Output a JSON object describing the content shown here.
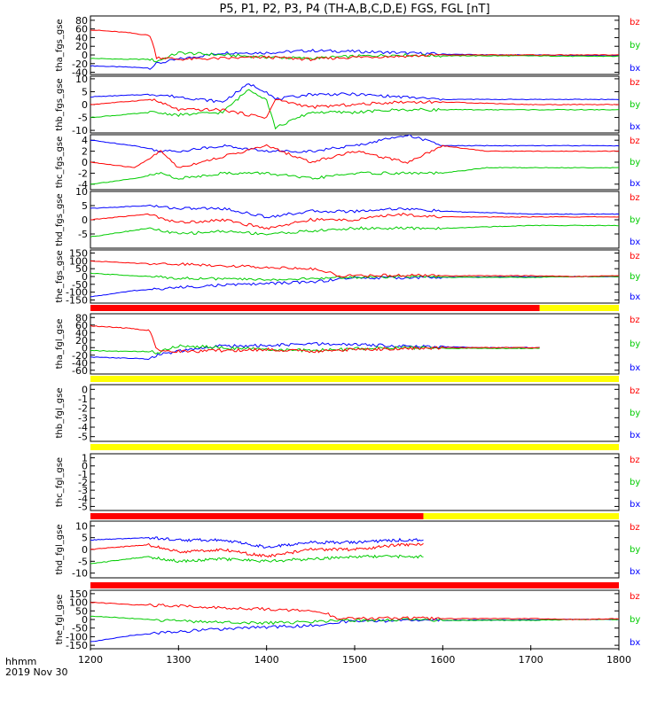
{
  "title": "P5, P1, P2, P3, P4 (TH-A,B,C,D,E) FGS, FGL [nT]",
  "x_axis": {
    "unit_label": "hhmm",
    "date_label": "2019 Nov 30",
    "range": [
      1200,
      1800
    ],
    "tick_labels": [
      "1200",
      "1300",
      "1400",
      "1500",
      "1600",
      "1700",
      "1800"
    ]
  },
  "colors": {
    "bz": "#ff0000",
    "by": "#00cc00",
    "bx": "#0000ff",
    "bar_red": "#ff0000",
    "bar_yellow": "#ffff00"
  },
  "legend_labels": [
    "bz",
    "by",
    "bx"
  ],
  "chart_data": [
    {
      "type": "line",
      "ylabel": "tha_fgs_gse",
      "ylim": [
        -45,
        90
      ],
      "y_tick_labels": [
        "-40",
        "-20",
        "0",
        "20",
        "40",
        "60",
        "80"
      ],
      "series": [
        {
          "name": "bz",
          "x": [
            1200,
            1240,
            1268,
            1275,
            1300,
            1350,
            1400,
            1450,
            1500,
            1550,
            1600,
            1650,
            1700,
            1750,
            1800
          ],
          "values": [
            58,
            52,
            45,
            -5,
            -10,
            -8,
            -5,
            -10,
            -5,
            -3,
            0,
            0,
            0,
            0,
            0
          ]
        },
        {
          "name": "by",
          "x": [
            1200,
            1240,
            1268,
            1275,
            1300,
            1350,
            1400,
            1450,
            1500,
            1550,
            1600,
            1650,
            1700,
            1750,
            1800
          ],
          "values": [
            -8,
            -10,
            -10,
            -15,
            5,
            0,
            -5,
            -8,
            -3,
            0,
            -2,
            -2,
            -2,
            -3,
            -3
          ]
        },
        {
          "name": "bx",
          "x": [
            1200,
            1240,
            1268,
            1275,
            1300,
            1350,
            1400,
            1450,
            1500,
            1550,
            1600,
            1650,
            1700,
            1750,
            1800
          ],
          "values": [
            -25,
            -28,
            -30,
            -20,
            -10,
            5,
            5,
            10,
            8,
            5,
            2,
            0,
            0,
            -1,
            -2
          ]
        }
      ]
    },
    {
      "type": "line",
      "ylabel": "thb_fgs_gse",
      "ylim": [
        -11,
        11
      ],
      "y_tick_labels": [
        "-10",
        "-5",
        "0",
        "5",
        "10"
      ],
      "series": [
        {
          "name": "bz",
          "x": [
            1200,
            1270,
            1300,
            1350,
            1380,
            1400,
            1410,
            1450,
            1500,
            1550,
            1600,
            1700,
            1800
          ],
          "values": [
            0,
            2,
            -2,
            -2,
            -4,
            -5,
            2,
            -1,
            0,
            1,
            1,
            0,
            0
          ]
        },
        {
          "name": "by",
          "x": [
            1200,
            1270,
            1300,
            1350,
            1380,
            1400,
            1410,
            1450,
            1500,
            1550,
            1600,
            1700,
            1800
          ],
          "values": [
            -5,
            -3,
            -4,
            -3,
            6,
            2,
            -9,
            -3,
            -3,
            -2,
            -2,
            -2,
            -2
          ]
        },
        {
          "name": "bx",
          "x": [
            1200,
            1270,
            1300,
            1350,
            1380,
            1400,
            1410,
            1450,
            1500,
            1550,
            1600,
            1700,
            1800
          ],
          "values": [
            3,
            4,
            3,
            1,
            8,
            5,
            2,
            4,
            4,
            3,
            2,
            2,
            2
          ]
        }
      ]
    },
    {
      "type": "line",
      "ylabel": "thc_fgs_gse",
      "ylim": [
        -5,
        5
      ],
      "y_tick_labels": [
        "-4",
        "-2",
        "0",
        "2",
        "4"
      ],
      "series": [
        {
          "name": "bz",
          "x": [
            1200,
            1250,
            1280,
            1300,
            1350,
            1400,
            1450,
            1500,
            1560,
            1600,
            1650,
            1700,
            1800
          ],
          "values": [
            0,
            -1,
            2,
            -1,
            1,
            3,
            0,
            2,
            0,
            3,
            2,
            2,
            2
          ]
        },
        {
          "name": "by",
          "x": [
            1200,
            1250,
            1280,
            1300,
            1350,
            1400,
            1450,
            1500,
            1560,
            1600,
            1650,
            1700,
            1800
          ],
          "values": [
            -4,
            -3,
            -2,
            -3,
            -2,
            -2,
            -3,
            -2,
            -2,
            -2,
            -1,
            -1,
            -1
          ]
        },
        {
          "name": "bx",
          "x": [
            1200,
            1250,
            1280,
            1300,
            1350,
            1400,
            1450,
            1500,
            1560,
            1600,
            1650,
            1700,
            1800
          ],
          "values": [
            4,
            3,
            2,
            2,
            3,
            2,
            2,
            3,
            5,
            3,
            3,
            3,
            3
          ]
        }
      ]
    },
    {
      "type": "line",
      "ylabel": "thd_fgs_gse",
      "ylim": [
        -10,
        10
      ],
      "y_tick_labels": [
        "-5",
        "0",
        "5",
        "10"
      ],
      "series": [
        {
          "name": "bz",
          "x": [
            1200,
            1265,
            1300,
            1350,
            1400,
            1450,
            1500,
            1550,
            1600,
            1700,
            1800
          ],
          "values": [
            0,
            2,
            -1,
            0,
            -3,
            0,
            0,
            2,
            1,
            1,
            1
          ]
        },
        {
          "name": "by",
          "x": [
            1200,
            1265,
            1300,
            1350,
            1400,
            1450,
            1500,
            1550,
            1600,
            1700,
            1800
          ],
          "values": [
            -6,
            -3,
            -5,
            -4,
            -5,
            -4,
            -3,
            -3,
            -3,
            -2,
            -2
          ]
        },
        {
          "name": "bx",
          "x": [
            1200,
            1265,
            1300,
            1350,
            1400,
            1450,
            1500,
            1550,
            1600,
            1700,
            1800
          ],
          "values": [
            4,
            5,
            4,
            4,
            1,
            3,
            3,
            4,
            3,
            2,
            2
          ]
        }
      ]
    },
    {
      "type": "line",
      "ylabel": "the_fgs_gse",
      "ylim": [
        -170,
        170
      ],
      "y_tick_labels": [
        "-150",
        "-100",
        "-50",
        "0",
        "50",
        "100",
        "150"
      ],
      "series": [
        {
          "name": "bz",
          "x": [
            1200,
            1250,
            1300,
            1350,
            1400,
            1450,
            1470,
            1480,
            1500,
            1550,
            1600,
            1650,
            1700,
            1750,
            1800
          ],
          "values": [
            100,
            85,
            80,
            70,
            60,
            50,
            30,
            5,
            5,
            8,
            5,
            5,
            5,
            0,
            5
          ]
        },
        {
          "name": "by",
          "x": [
            1200,
            1250,
            1300,
            1350,
            1400,
            1450,
            1470,
            1480,
            1500,
            1550,
            1600,
            1650,
            1700,
            1750,
            1800
          ],
          "values": [
            20,
            5,
            -10,
            -15,
            -20,
            -15,
            -10,
            -5,
            -5,
            0,
            -5,
            -5,
            -5,
            0,
            0
          ]
        },
        {
          "name": "bx",
          "x": [
            1200,
            1250,
            1300,
            1350,
            1400,
            1450,
            1470,
            1480,
            1500,
            1550,
            1600,
            1650,
            1700,
            1750,
            1800
          ],
          "values": [
            -130,
            -90,
            -70,
            -55,
            -45,
            -35,
            -25,
            -15,
            -10,
            -8,
            -5,
            -3,
            -2,
            0,
            0
          ]
        }
      ]
    },
    {
      "type": "line",
      "ylabel": "tha_fgl_gse",
      "ylim": [
        -70,
        90
      ],
      "y_tick_labels": [
        "-60",
        "-40",
        "-20",
        "0",
        "20",
        "40",
        "60",
        "80"
      ],
      "series": [
        {
          "name": "bz",
          "x": [
            1200,
            1240,
            1268,
            1275,
            1300,
            1350,
            1400,
            1450,
            1500,
            1550,
            1600,
            1650,
            1710
          ],
          "values": [
            58,
            52,
            45,
            -5,
            -10,
            -8,
            -5,
            -10,
            -5,
            -3,
            0,
            0,
            0
          ]
        },
        {
          "name": "by",
          "x": [
            1200,
            1240,
            1268,
            1275,
            1300,
            1350,
            1400,
            1450,
            1500,
            1550,
            1600,
            1650,
            1710
          ],
          "values": [
            -8,
            -10,
            -10,
            -15,
            5,
            0,
            -5,
            -8,
            -3,
            0,
            -2,
            -2,
            -2
          ]
        },
        {
          "name": "bx",
          "x": [
            1200,
            1240,
            1268,
            1275,
            1300,
            1350,
            1400,
            1450,
            1500,
            1550,
            1600,
            1650,
            1710
          ],
          "values": [
            -25,
            -28,
            -30,
            -20,
            -10,
            5,
            5,
            10,
            8,
            5,
            2,
            0,
            0
          ]
        }
      ]
    },
    {
      "type": "line",
      "ylabel": "thb_fgl_gse",
      "ylim": [
        -5.5,
        0.5
      ],
      "y_tick_labels": [
        "-5",
        "-4",
        "-3",
        "-2",
        "-1",
        "0"
      ],
      "series": []
    },
    {
      "type": "line",
      "ylabel": "thc_fgl_gse",
      "ylim": [
        -5.5,
        1.5
      ],
      "y_tick_labels": [
        "-5",
        "-4",
        "-3",
        "-2",
        "-1",
        "0",
        "1"
      ],
      "series": []
    },
    {
      "type": "line",
      "ylabel": "thd_fgl_gse",
      "ylim": [
        -12,
        12
      ],
      "y_tick_labels": [
        "-10",
        "-5",
        "0",
        "5",
        "10"
      ],
      "series": [
        {
          "name": "bz",
          "x": [
            1200,
            1265,
            1300,
            1350,
            1400,
            1450,
            1500,
            1550,
            1578
          ],
          "values": [
            0,
            2,
            -1,
            0,
            -3,
            0,
            0,
            2,
            2
          ]
        },
        {
          "name": "by",
          "x": [
            1200,
            1265,
            1300,
            1350,
            1400,
            1450,
            1500,
            1550,
            1578
          ],
          "values": [
            -6,
            -3,
            -5,
            -4,
            -5,
            -4,
            -3,
            -3,
            -3
          ]
        },
        {
          "name": "bx",
          "x": [
            1200,
            1265,
            1300,
            1350,
            1400,
            1450,
            1500,
            1550,
            1578
          ],
          "values": [
            4,
            5,
            4,
            4,
            1,
            3,
            3,
            4,
            4
          ]
        }
      ]
    },
    {
      "type": "line",
      "ylabel": "the_fgl_gse",
      "ylim": [
        -170,
        170
      ],
      "y_tick_labels": [
        "-150",
        "-100",
        "-50",
        "0",
        "50",
        "100",
        "150"
      ],
      "series": [
        {
          "name": "bz",
          "x": [
            1200,
            1250,
            1300,
            1350,
            1400,
            1450,
            1470,
            1480,
            1500,
            1550,
            1600,
            1650,
            1700,
            1750,
            1800
          ],
          "values": [
            100,
            85,
            80,
            70,
            60,
            50,
            30,
            5,
            5,
            8,
            5,
            5,
            5,
            0,
            5
          ]
        },
        {
          "name": "by",
          "x": [
            1200,
            1250,
            1300,
            1350,
            1400,
            1450,
            1470,
            1480,
            1500,
            1550,
            1600,
            1650,
            1700,
            1750,
            1800
          ],
          "values": [
            20,
            5,
            -10,
            -15,
            -20,
            -15,
            -10,
            -5,
            -5,
            0,
            -5,
            -5,
            -5,
            0,
            0
          ]
        },
        {
          "name": "bx",
          "x": [
            1200,
            1250,
            1300,
            1350,
            1400,
            1450,
            1470,
            1480,
            1500,
            1550,
            1600,
            1650,
            1700,
            1750,
            1800
          ],
          "values": [
            -130,
            -90,
            -70,
            -55,
            -45,
            -35,
            -25,
            -15,
            -10,
            -8,
            -5,
            -3,
            -2,
            0,
            0
          ]
        }
      ]
    }
  ],
  "status_bars": [
    {
      "segments": [
        {
          "start": 1200,
          "end": 1710,
          "color": "red"
        },
        {
          "start": 1710,
          "end": 1800,
          "color": "yellow"
        }
      ]
    },
    {
      "segments": [
        {
          "start": 1200,
          "end": 1800,
          "color": "yellow"
        }
      ]
    },
    {
      "segments": [
        {
          "start": 1200,
          "end": 1800,
          "color": "yellow"
        }
      ]
    },
    {
      "segments": [
        {
          "start": 1200,
          "end": 1578,
          "color": "red"
        },
        {
          "start": 1578,
          "end": 1800,
          "color": "yellow"
        }
      ]
    },
    {
      "segments": [
        {
          "start": 1200,
          "end": 1800,
          "color": "red"
        }
      ]
    }
  ]
}
